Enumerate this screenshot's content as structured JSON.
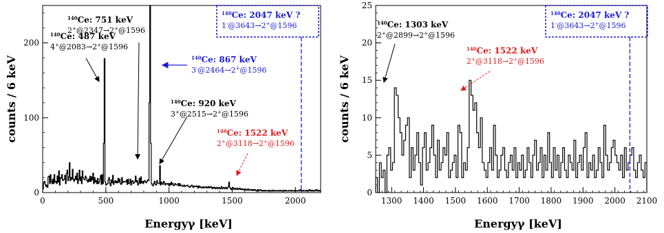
{
  "chart_data": [
    {
      "type": "histogram",
      "xlabel": "Energyγ [keV]",
      "ylabel": "counts / 6 keV",
      "xlim": [
        0,
        2200
      ],
      "ylim": [
        0,
        250
      ],
      "xticks": [
        "0",
        "500",
        "1000",
        "1500",
        "2000"
      ],
      "yticks": [
        "0",
        "100",
        "200"
      ],
      "bin_width": 6,
      "bin_edges": [
        0,
        2200
      ],
      "values": [
        5,
        13,
        15,
        11,
        8,
        10,
        7,
        21,
        22,
        12,
        24,
        15,
        12,
        18,
        12,
        24,
        14,
        15,
        12,
        22,
        14,
        29,
        10,
        20,
        19,
        24,
        16,
        17,
        18,
        23,
        12,
        25,
        30,
        16,
        21,
        40,
        16,
        20,
        18,
        31,
        18,
        15,
        18,
        22,
        17,
        26,
        12,
        18,
        30,
        16,
        21,
        12,
        29,
        20,
        18,
        17,
        22,
        20,
        16,
        14,
        18,
        15,
        22,
        15,
        21,
        17,
        26,
        12,
        20,
        14,
        16,
        12,
        19,
        12,
        14,
        18,
        23,
        11,
        24,
        12,
        66,
        179,
        14,
        10,
        11,
        12,
        17,
        20,
        12,
        9,
        17,
        13,
        23,
        11,
        14,
        16,
        13,
        15,
        13,
        19,
        14,
        18,
        12,
        11,
        20,
        13,
        15,
        15,
        14,
        14,
        17,
        11,
        18,
        12,
        13,
        18,
        10,
        15,
        16,
        12,
        13,
        15,
        22,
        14,
        16,
        10,
        13,
        19,
        12,
        21,
        13,
        15,
        12,
        15,
        16,
        14,
        13,
        15,
        17,
        16,
        120,
        250,
        66,
        12,
        10,
        9,
        12,
        15,
        11,
        10,
        16,
        13,
        12,
        12,
        36,
        10,
        14,
        12,
        11,
        15,
        13,
        10,
        12,
        12,
        11,
        12,
        9,
        12,
        10,
        14,
        11,
        12,
        9,
        10,
        12,
        11,
        10,
        10,
        12,
        9,
        12,
        9,
        10,
        10,
        8,
        9,
        10,
        8,
        9,
        9,
        10,
        9,
        8,
        7,
        8,
        9,
        10,
        8,
        7,
        9,
        8,
        8,
        9,
        8,
        6,
        9,
        7,
        8,
        7,
        6,
        7,
        8,
        6,
        7,
        7,
        8,
        6,
        7,
        8,
        6,
        7,
        8,
        7,
        5,
        7,
        6,
        7,
        5,
        6,
        7,
        5,
        6,
        7,
        5,
        6,
        8,
        5,
        6,
        7,
        5,
        6,
        7,
        5,
        6,
        8,
        14,
        7,
        5,
        4,
        6,
        7,
        4,
        5,
        6,
        4,
        5,
        6,
        4,
        5,
        6,
        4,
        5,
        4,
        5,
        4,
        3,
        5,
        4,
        3,
        4,
        5,
        3,
        4,
        4,
        3,
        4,
        3,
        4,
        3,
        4,
        3,
        2,
        3,
        4,
        2,
        3,
        4,
        3,
        2,
        3,
        2,
        3,
        2,
        3,
        2,
        2,
        3,
        2,
        3,
        2,
        2,
        3,
        2,
        3,
        2,
        3,
        2,
        2,
        3,
        2,
        2,
        3,
        2,
        3,
        2,
        2,
        3,
        2,
        3,
        2,
        3,
        2,
        2,
        3,
        2,
        2,
        3,
        2,
        3,
        2,
        2,
        3,
        2,
        3,
        2,
        2,
        3,
        2,
        3,
        4,
        2,
        3,
        2,
        3,
        2,
        2,
        3,
        2,
        3,
        2,
        3,
        4,
        2,
        3,
        2,
        3,
        2,
        3,
        2,
        3,
        4,
        2,
        3,
        2,
        3,
        2
      ],
      "annotations": [
        {
          "title": "140Ce: 751 keV",
          "sub": "2+@2347→2+@1596",
          "color": "#000000"
        },
        {
          "title": "140Ce: 487 keV",
          "sub": "4+@2083→2+@1596",
          "color": "#000000"
        },
        {
          "title": "140Ce: 867 keV",
          "sub": "3-@2464→2+@1596",
          "color": "#1a1adc"
        },
        {
          "title": "140Ce: 920 keV",
          "sub": "3+@2515→2+@1596",
          "color": "#000000"
        },
        {
          "title": "140Ce: 1522 keV",
          "sub": "2+@3118→2+@1596",
          "color": "#e11b1b"
        },
        {
          "title": "140Ce: 2047 keV ?",
          "sub": "1-@3643→2+@1596",
          "color": "#1a1adc"
        }
      ]
    },
    {
      "type": "histogram",
      "xlabel": "Energyγ [keV]",
      "ylabel": "counts / 6 keV",
      "xlim": [
        1250,
        2100
      ],
      "ylim": [
        0,
        25
      ],
      "xticks": [
        "1300",
        "1400",
        "1500",
        "1600",
        "1700",
        "1800",
        "1900",
        "2000",
        "2100"
      ],
      "yticks": [
        "0",
        "5",
        "10",
        "15",
        "20",
        "25"
      ],
      "bin_width": 6,
      "bin_edges": [
        1250,
        2100
      ],
      "values": [
        2,
        0,
        4,
        2,
        3,
        0,
        5,
        6,
        3,
        4,
        14,
        13,
        10,
        8,
        5,
        7,
        9,
        10,
        2,
        6,
        3,
        5,
        8,
        4,
        1,
        6,
        8,
        3,
        4,
        6,
        9,
        5,
        2,
        7,
        3,
        4,
        6,
        5,
        8,
        2,
        3,
        4,
        5,
        2,
        9,
        8,
        2,
        4,
        3,
        6,
        15,
        13,
        11,
        12,
        8,
        6,
        10,
        4,
        3,
        2,
        4,
        6,
        3,
        9,
        5,
        2,
        3,
        5,
        6,
        3,
        2,
        4,
        5,
        3,
        6,
        2,
        4,
        3,
        5,
        2,
        3,
        6,
        4,
        2,
        5,
        7,
        3,
        4,
        6,
        2,
        5,
        3,
        8,
        4,
        2,
        6,
        3,
        5,
        2,
        4,
        6,
        3,
        2,
        5,
        4,
        3,
        7,
        2,
        4,
        5,
        3,
        6,
        8,
        2,
        4,
        3,
        5,
        2,
        3,
        6,
        4,
        2,
        9,
        5,
        3,
        4,
        6,
        7,
        5,
        4,
        3,
        5,
        2,
        6,
        3,
        4,
        5,
        6,
        3,
        2,
        4,
        5,
        3,
        2,
        4
      ]
    }
  ],
  "right_annotations": [
    {
      "title": "140Ce: 1303 keV",
      "sub": "2+@2899→2+@1596",
      "color": "#000000"
    },
    {
      "title": "140Ce: 1522 keV",
      "sub": "2+@3118→2+@1596",
      "color": "#e11b1b"
    },
    {
      "title": "140Ce: 2047 keV ?",
      "sub": "1-@3643→2+@1596",
      "color": "#1a1adc"
    }
  ]
}
